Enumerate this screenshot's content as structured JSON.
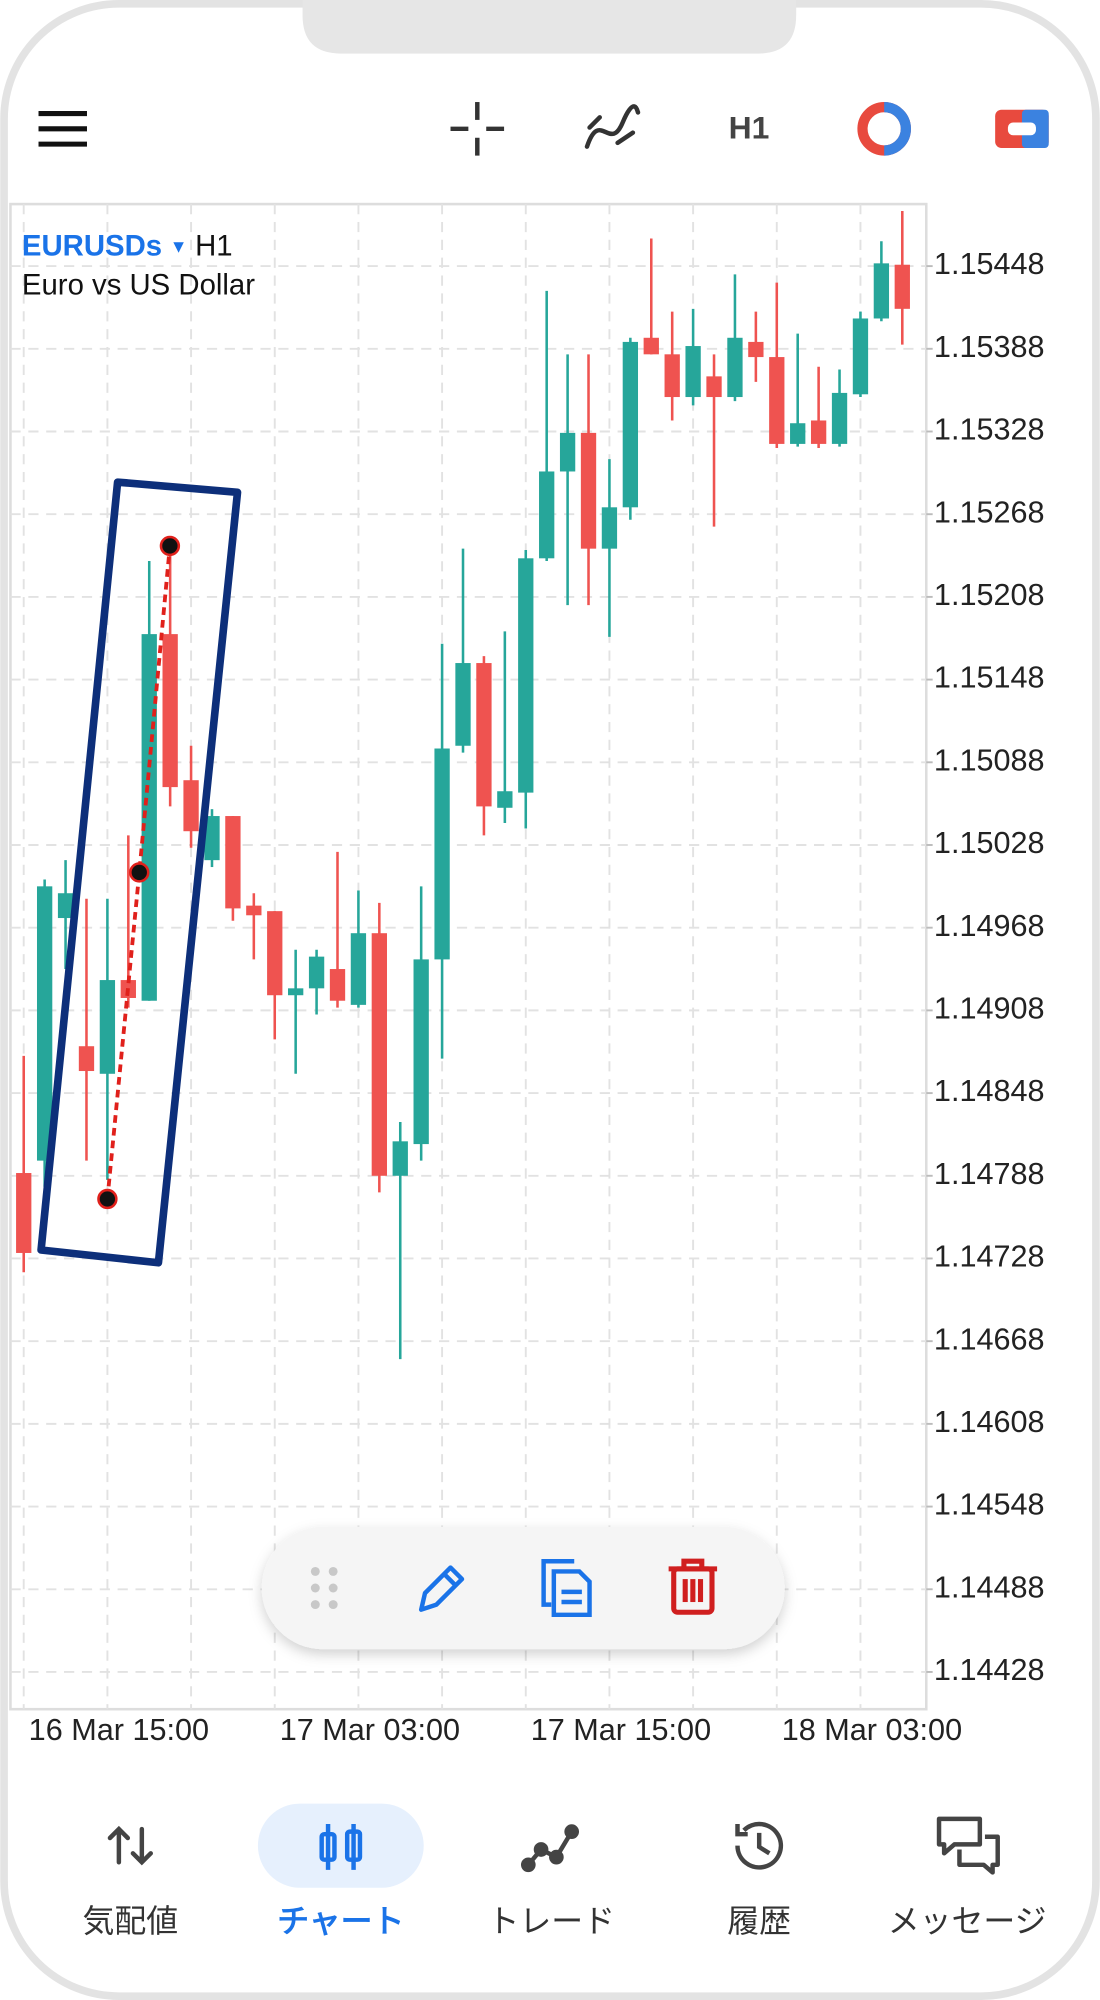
{
  "toolbar": {
    "timeframe": "H1"
  },
  "chart_data": {
    "type": "candlestick",
    "symbol": "EURUSDs",
    "timeframe": "H1",
    "description": "Euro vs US Dollar",
    "categories": [
      null,
      null,
      null,
      null,
      "16 Mar 15:00",
      null,
      null,
      null,
      null,
      null,
      null,
      null,
      null,
      null,
      null,
      null,
      "17 Mar 03:00",
      null,
      null,
      null,
      null,
      null,
      null,
      null,
      null,
      null,
      null,
      null,
      "17 Mar 15:00",
      null,
      null,
      null,
      null,
      null,
      null,
      null,
      null,
      null,
      null,
      null,
      "18 Mar 03:00",
      null,
      null
    ],
    "open": [
      1.1479,
      1.14799,
      1.14975,
      1.14882,
      1.14862,
      1.1493,
      1.14915,
      1.15181,
      1.15075,
      1.15017,
      1.15049,
      1.14984,
      1.1498,
      1.14919,
      1.14924,
      1.14938,
      1.14912,
      1.14964,
      1.14788,
      1.14811,
      1.14945,
      1.151,
      1.1516,
      1.15055,
      1.15066,
      1.15236,
      1.15299,
      1.15327,
      1.15243,
      1.15273,
      1.15396,
      1.15384,
      1.15353,
      1.15368,
      1.15353,
      1.15393,
      1.15382,
      1.15319,
      1.15336,
      1.15319,
      1.15355,
      1.1541,
      1.15449
    ],
    "high": [
      1.14875,
      1.15003,
      1.15017,
      1.14989,
      1.14989,
      1.15035,
      1.15234,
      1.15245,
      1.151,
      1.15054,
      1.15049,
      1.14993,
      1.1498,
      1.14952,
      1.14952,
      1.15023,
      1.14995,
      1.14986,
      1.14827,
      1.14998,
      1.15174,
      1.15243,
      1.15165,
      1.15183,
      1.15242,
      1.1543,
      1.15384,
      1.15384,
      1.15308,
      1.15396,
      1.15468,
      1.15415,
      1.15417,
      1.15384,
      1.15442,
      1.15415,
      1.15436,
      1.15399,
      1.15375,
      1.15373,
      1.15415,
      1.15466,
      1.15488
    ],
    "low": [
      1.14718,
      1.1478,
      1.14938,
      1.14799,
      1.14785,
      1.1491,
      1.14915,
      1.15056,
      1.15026,
      1.15012,
      1.14973,
      1.14945,
      1.14887,
      1.14862,
      1.14905,
      1.1491,
      1.1491,
      1.14776,
      1.14655,
      1.14799,
      1.14873,
      1.15095,
      1.15035,
      1.15044,
      1.1504,
      1.15234,
      1.15202,
      1.15202,
      1.15179,
      1.15264,
      1.15384,
      1.15336,
      1.15347,
      1.15259,
      1.1535,
      1.15364,
      1.15316,
      1.15317,
      1.15316,
      1.15317,
      1.15353,
      1.15408,
      1.15391
    ],
    "close": [
      1.14732,
      1.14998,
      1.14993,
      1.14864,
      1.1493,
      1.14917,
      1.15181,
      1.1507,
      1.15038,
      1.15049,
      1.14982,
      1.14977,
      1.14919,
      1.14924,
      1.14947,
      1.14915,
      1.14964,
      1.14788,
      1.14813,
      1.14945,
      1.15098,
      1.1516,
      1.15056,
      1.15067,
      1.15236,
      1.15299,
      1.15327,
      1.15243,
      1.15273,
      1.15393,
      1.15384,
      1.15353,
      1.1539,
      1.15353,
      1.15396,
      1.15382,
      1.15319,
      1.15334,
      1.15319,
      1.15356,
      1.1541,
      1.1545,
      1.15417
    ],
    "ylim": [
      1.14401,
      1.15493
    ],
    "yticks": [
      1.15448,
      1.15388,
      1.15328,
      1.15268,
      1.15208,
      1.15148,
      1.15088,
      1.15028,
      1.14968,
      1.14908,
      1.14848,
      1.14788,
      1.14728,
      1.14668,
      1.14608,
      1.14548,
      1.14488,
      1.14428
    ],
    "up_color": "#26a69a",
    "down_color": "#ef5350",
    "grid": true
  },
  "nav": {
    "active": 1,
    "items": [
      {
        "label": "気配値"
      },
      {
        "label": "チャート"
      },
      {
        "label": "トレード"
      },
      {
        "label": "履歴"
      },
      {
        "label": "メッセージ"
      }
    ]
  }
}
